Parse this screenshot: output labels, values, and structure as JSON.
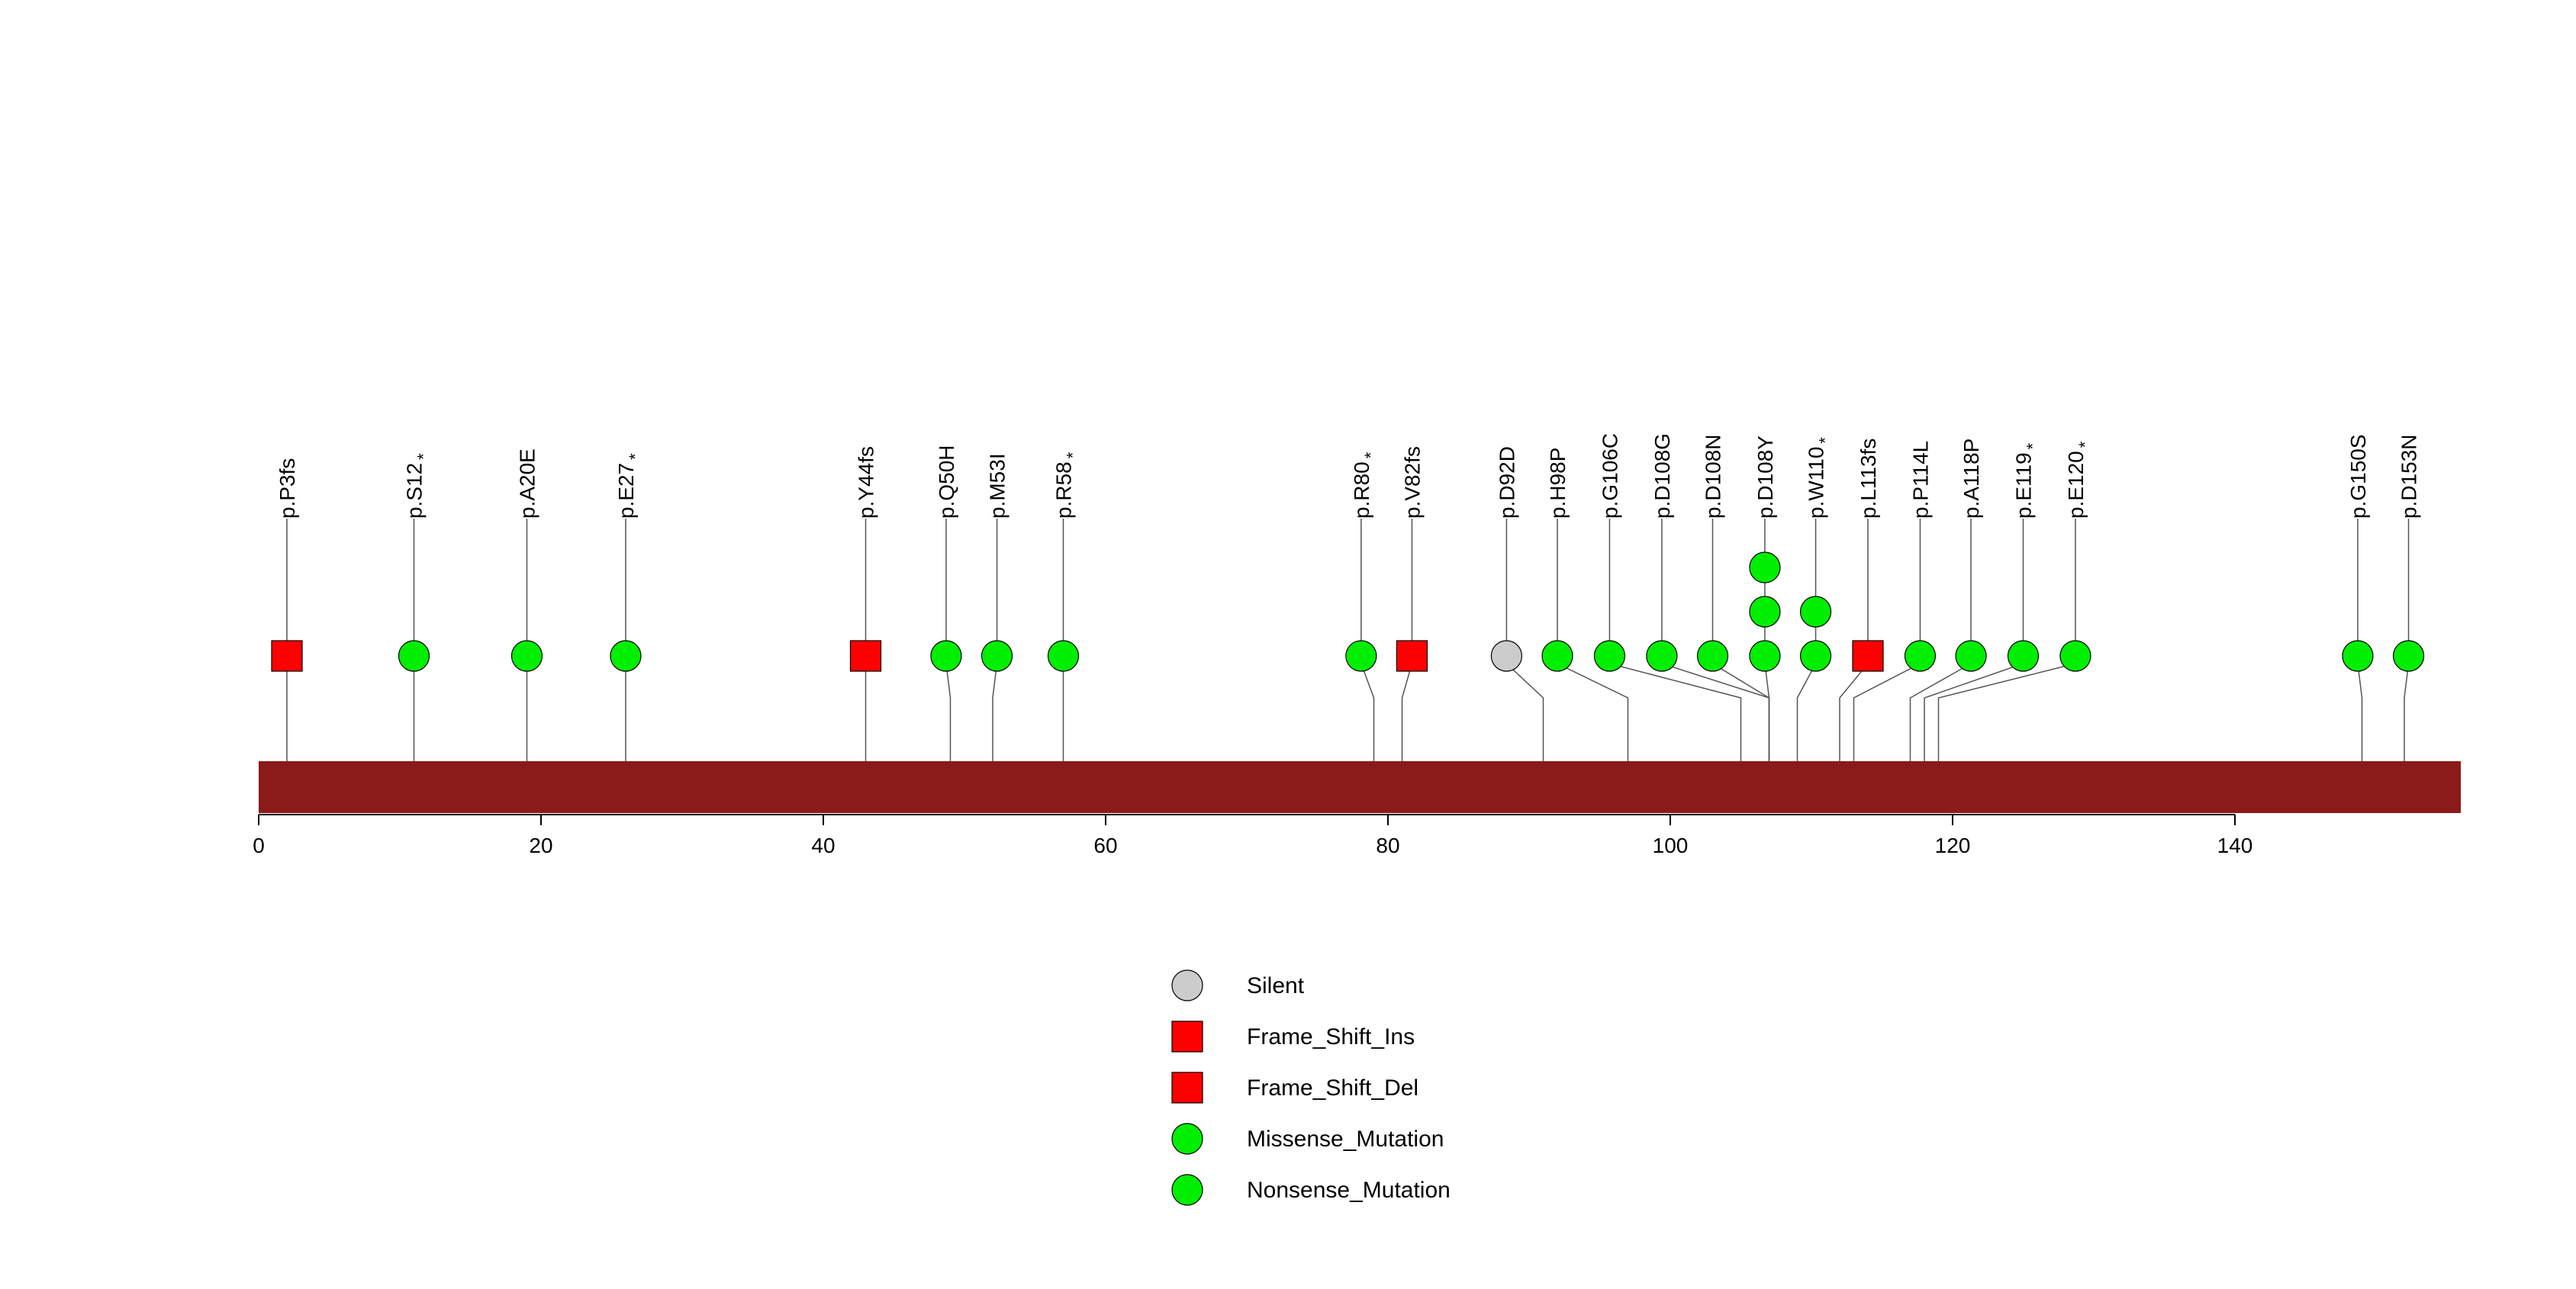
{
  "chart_data": {
    "type": "lollipop",
    "title": "",
    "xlabel": "",
    "ylabel": "",
    "xlim": [
      0,
      156
    ],
    "xticks": [
      0,
      20,
      40,
      60,
      80,
      100,
      120,
      140
    ],
    "protein_bar": {
      "start": 0,
      "end": 156,
      "color": "#8b1a1a"
    },
    "colors": {
      "silent": "#cccccc",
      "frame_shift": "#ff0000",
      "missense": "#00ee00",
      "nonsense": "#00ee00",
      "stroke": "#000000",
      "connector": "#555555"
    },
    "mutations": [
      {
        "label": "p.P3fs",
        "position": 2,
        "display": 2.0,
        "count": 1,
        "type": "Frame_Shift",
        "shape": "square",
        "nonsense": false
      },
      {
        "label": "p.S12",
        "position": 11,
        "display": 11.0,
        "count": 1,
        "type": "Nonsense_Mutation",
        "shape": "circle",
        "nonsense": true
      },
      {
        "label": "p.A20E",
        "position": 19,
        "display": 19.0,
        "count": 1,
        "type": "Missense_Mutation",
        "shape": "circle",
        "nonsense": false
      },
      {
        "label": "p.E27",
        "position": 26,
        "display": 26.0,
        "count": 1,
        "type": "Nonsense_Mutation",
        "shape": "circle",
        "nonsense": true
      },
      {
        "label": "p.Y44fs",
        "position": 43,
        "display": 43.0,
        "count": 1,
        "type": "Frame_Shift",
        "shape": "square",
        "nonsense": false
      },
      {
        "label": "p.Q50H",
        "position": 49,
        "display": 48.7,
        "count": 1,
        "type": "Missense_Mutation",
        "shape": "circle",
        "nonsense": false
      },
      {
        "label": "p.M53I",
        "position": 52,
        "display": 52.3,
        "count": 1,
        "type": "Missense_Mutation",
        "shape": "circle",
        "nonsense": false
      },
      {
        "label": "p.R58",
        "position": 57,
        "display": 57.0,
        "count": 1,
        "type": "Nonsense_Mutation",
        "shape": "circle",
        "nonsense": true
      },
      {
        "label": "p.R80",
        "position": 79,
        "display": 78.1,
        "count": 1,
        "type": "Nonsense_Mutation",
        "shape": "circle",
        "nonsense": true
      },
      {
        "label": "p.V82fs",
        "position": 81,
        "display": 81.7,
        "count": 1,
        "type": "Frame_Shift",
        "shape": "square",
        "nonsense": false
      },
      {
        "label": "p.D92D",
        "position": 91,
        "display": 88.4,
        "count": 1,
        "type": "Silent",
        "shape": "circle",
        "nonsense": false
      },
      {
        "label": "p.H98P",
        "position": 97,
        "display": 92.0,
        "count": 1,
        "type": "Missense_Mutation",
        "shape": "circle",
        "nonsense": false
      },
      {
        "label": "p.G106C",
        "position": 105,
        "display": 95.7,
        "count": 1,
        "type": "Missense_Mutation",
        "shape": "circle",
        "nonsense": false
      },
      {
        "label": "p.D108G",
        "position": 107,
        "display": 99.4,
        "count": 1,
        "type": "Missense_Mutation",
        "shape": "circle",
        "nonsense": false
      },
      {
        "label": "p.D108N",
        "position": 107,
        "display": 103.0,
        "count": 1,
        "type": "Missense_Mutation",
        "shape": "circle",
        "nonsense": false
      },
      {
        "label": "p.D108Y",
        "position": 107,
        "display": 106.7,
        "count": 3,
        "type": "Missense_Mutation",
        "shape": "circle",
        "nonsense": false
      },
      {
        "label": "p.W110",
        "position": 109,
        "display": 110.3,
        "count": 2,
        "type": "Nonsense_Mutation",
        "shape": "circle",
        "nonsense": true
      },
      {
        "label": "p.L113fs",
        "position": 112,
        "display": 114.0,
        "count": 1,
        "type": "Frame_Shift",
        "shape": "square",
        "nonsense": false
      },
      {
        "label": "p.P114L",
        "position": 113,
        "display": 117.7,
        "count": 1,
        "type": "Missense_Mutation",
        "shape": "circle",
        "nonsense": false
      },
      {
        "label": "p.A118P",
        "position": 117,
        "display": 121.3,
        "count": 1,
        "type": "Missense_Mutation",
        "shape": "circle",
        "nonsense": false
      },
      {
        "label": "p.E119",
        "position": 118,
        "display": 125.0,
        "count": 1,
        "type": "Nonsense_Mutation",
        "shape": "circle",
        "nonsense": true
      },
      {
        "label": "p.E120",
        "position": 119,
        "display": 128.7,
        "count": 1,
        "type": "Nonsense_Mutation",
        "shape": "circle",
        "nonsense": true
      },
      {
        "label": "p.G150S",
        "position": 149,
        "display": 148.7,
        "count": 1,
        "type": "Missense_Mutation",
        "shape": "circle",
        "nonsense": false
      },
      {
        "label": "p.D153N",
        "position": 152,
        "display": 152.3,
        "count": 1,
        "type": "Missense_Mutation",
        "shape": "circle",
        "nonsense": false
      }
    ],
    "nonsense_marker": "*",
    "legend": [
      {
        "label": "Silent",
        "shape": "circle",
        "color": "#cccccc"
      },
      {
        "label": "Frame_Shift_Ins",
        "shape": "square",
        "color": "#ff0000"
      },
      {
        "label": "Frame_Shift_Del",
        "shape": "square",
        "color": "#ff0000"
      },
      {
        "label": "Missense_Mutation",
        "shape": "circle",
        "color": "#00ee00"
      },
      {
        "label": "Nonsense_Mutation",
        "shape": "circle",
        "color": "#00ee00"
      }
    ]
  }
}
